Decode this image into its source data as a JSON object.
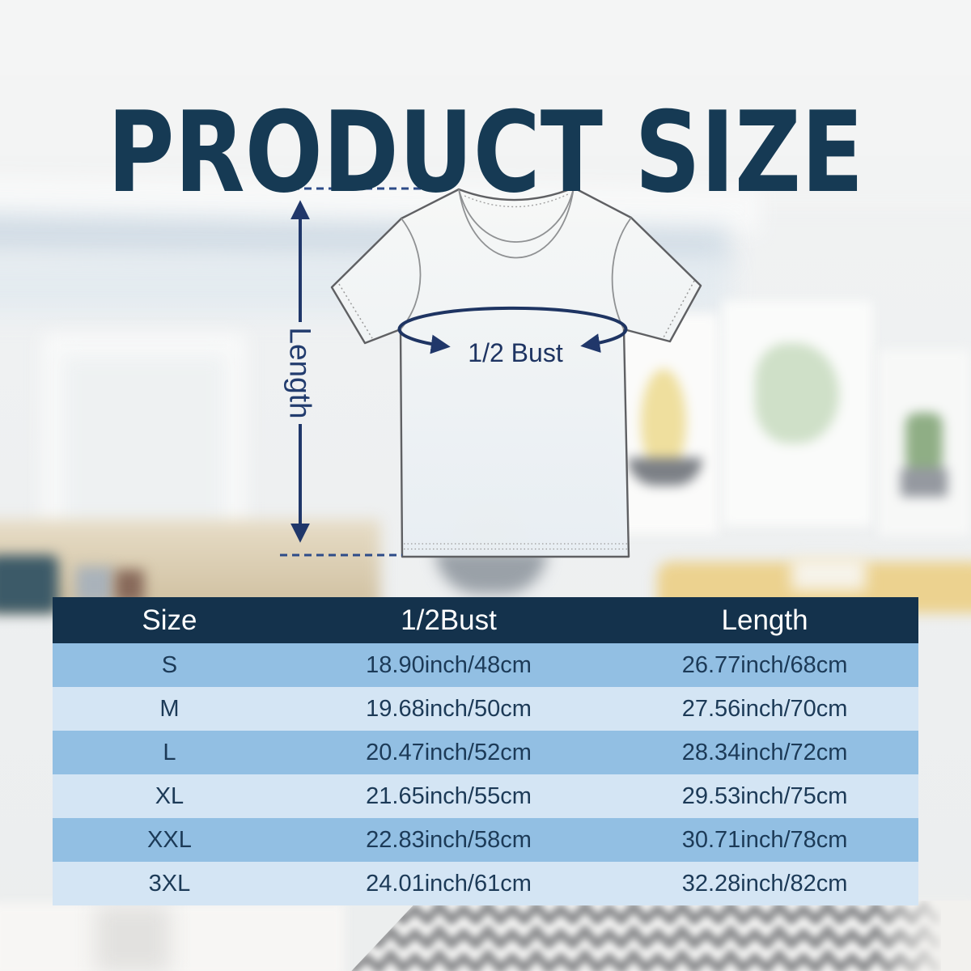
{
  "page": {
    "title": "PRODUCT SIZE"
  },
  "diagram": {
    "length_label": "Length",
    "bust_label": "1/2 Bust"
  },
  "table": {
    "headers": [
      "Size",
      "1/2Bust",
      "Length"
    ],
    "rows": [
      {
        "size": "S",
        "bust": "18.90inch/48cm",
        "length": "26.77inch/68cm"
      },
      {
        "size": "M",
        "bust": "19.68inch/50cm",
        "length": "27.56inch/70cm"
      },
      {
        "size": "L",
        "bust": "20.47inch/52cm",
        "length": "28.34inch/72cm"
      },
      {
        "size": "XL",
        "bust": "21.65inch/55cm",
        "length": "29.53inch/75cm"
      },
      {
        "size": "XXL",
        "bust": "22.83inch/58cm",
        "length": "30.71inch/78cm"
      },
      {
        "size": "3XL",
        "bust": "24.01inch/61cm",
        "length": "32.28inch/82cm"
      }
    ]
  },
  "colors": {
    "title_navy": "#163a54",
    "diagram_navy": "#20376a",
    "dash_blue": "#2d4b88",
    "header_bg": "#14324c",
    "header_text": "#ffffff",
    "row_blue": "#92bfe3",
    "row_light": "#d4e5f4",
    "row_text": "#1c3a57",
    "shirt_line": "#5f6063"
  },
  "chart_data": {
    "type": "table",
    "title": "PRODUCT SIZE",
    "columns": [
      "Size",
      "1/2Bust",
      "Length"
    ],
    "rows": [
      [
        "S",
        "18.90inch/48cm",
        "26.77inch/68cm"
      ],
      [
        "M",
        "19.68inch/50cm",
        "27.56inch/70cm"
      ],
      [
        "L",
        "20.47inch/52cm",
        "28.34inch/72cm"
      ],
      [
        "XL",
        "21.65inch/55cm",
        "29.53inch/75cm"
      ],
      [
        "XXL",
        "22.83inch/58cm",
        "30.71inch/78cm"
      ],
      [
        "3XL",
        "24.01inch/61cm",
        "32.28inch/82cm"
      ]
    ],
    "units": {
      "bust": "inch/cm",
      "length": "inch/cm"
    }
  }
}
